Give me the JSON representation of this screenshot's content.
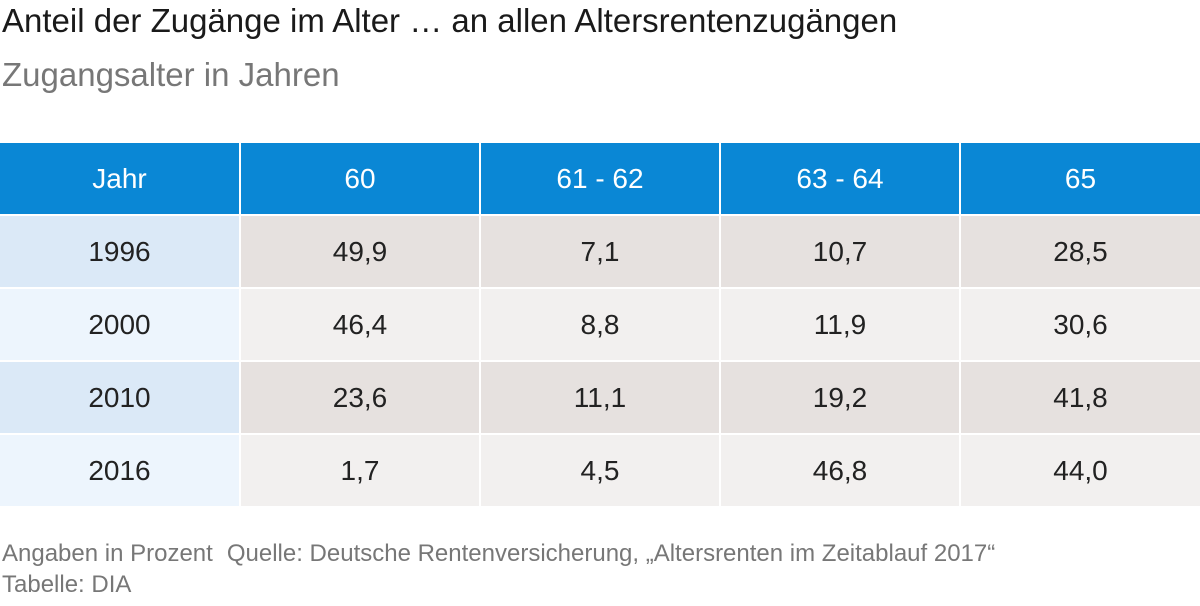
{
  "title": "Anteil der Zugänge im Alter … an allen Altersrentenzugängen",
  "subtitle": "Zugangsalter in Jahren",
  "chart_data": {
    "type": "table",
    "columns": [
      "Jahr",
      "60",
      "61 - 62",
      "63 - 64",
      "65"
    ],
    "rows": [
      [
        "1996",
        "49,9",
        "7,1",
        "10,7",
        "28,5"
      ],
      [
        "2000",
        "46,4",
        "8,8",
        "11,9",
        "30,6"
      ],
      [
        "2010",
        "23,6",
        "11,1",
        "19,2",
        "41,8"
      ],
      [
        "2016",
        "1,7",
        "4,5",
        "46,8",
        "44,0"
      ]
    ]
  },
  "footer": {
    "unit_note": "Angaben in Prozent",
    "source": "Quelle: Deutsche Rentenversicherung, „Altersrenten im Zeitablauf 2017“",
    "credit": "Tabelle: DIA"
  },
  "colors": {
    "header_bg": "#0a87d5",
    "header_text": "#ffffff",
    "year_cell_dark": "#dbe9f7",
    "year_cell_light": "#edf5fd",
    "value_cell_dark": "#e6e1df",
    "value_cell_light": "#f2f0ef"
  }
}
